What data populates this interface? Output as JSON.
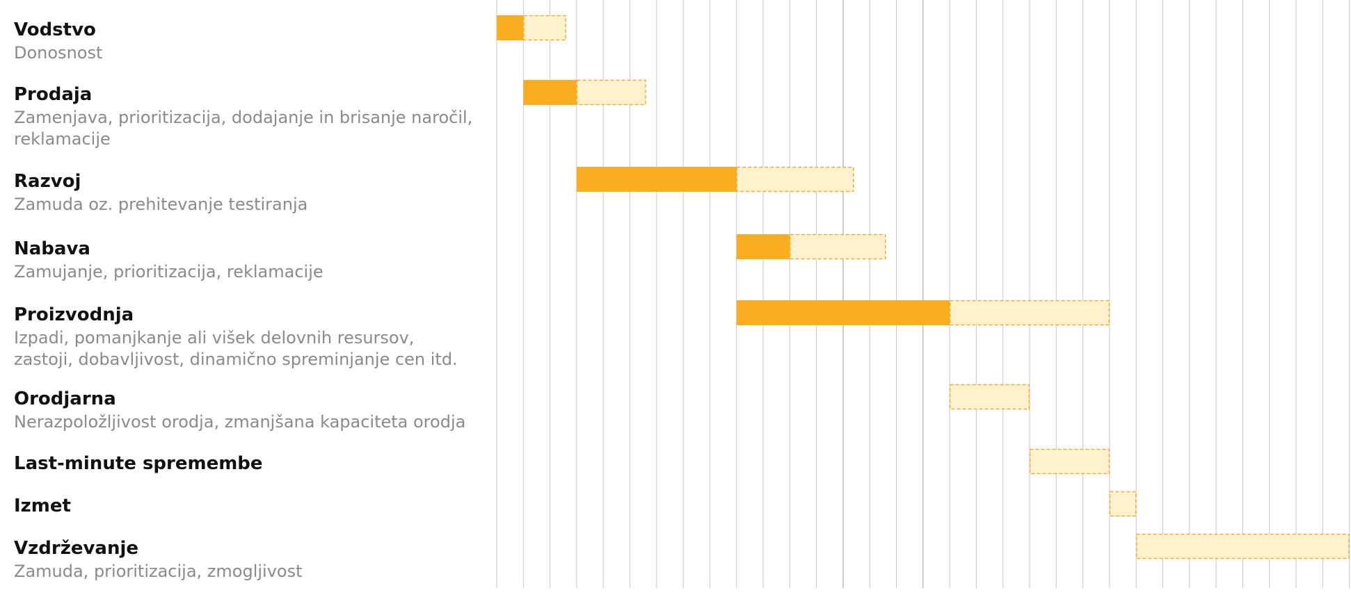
{
  "chart_data": {
    "type": "gantt",
    "title": "",
    "xlabel": "",
    "ylabel": "",
    "columns": 32,
    "grid": true,
    "colors": {
      "actual": "#F9AE22",
      "planned_fill": "#FFF2CC",
      "planned_border": "#F2A93B",
      "grid": "#c6c6c6",
      "grid_major": "#9a9a9a"
    },
    "rows": [
      {
        "title": "Vodstvo",
        "subtitle": [
          "Donosnost"
        ],
        "actual": [
          0,
          1
        ],
        "planned": [
          1,
          2.6
        ]
      },
      {
        "title": "Prodaja",
        "subtitle": [
          "Zamenjava, prioritizacija, dodajanje in brisanje naročil,",
          "reklamacije"
        ],
        "actual": [
          1,
          3
        ],
        "planned": [
          3,
          5.6
        ]
      },
      {
        "title": "Razvoj",
        "subtitle": [
          "Zamuda oz. prehitevanje testiranja"
        ],
        "actual": [
          3,
          9
        ],
        "planned": [
          9,
          13.4
        ]
      },
      {
        "title": "Nabava",
        "subtitle": [
          "Zamujanje, prioritizacija, reklamacije"
        ],
        "actual": [
          9,
          11
        ],
        "planned": [
          11,
          14.6
        ]
      },
      {
        "title": "Proizvodnja",
        "subtitle": [
          "Izpadi, pomanjkanje ali višek delovnih resursov,",
          "zastoji, dobavljivost, dinamično spreminjanje cen itd."
        ],
        "actual": [
          9,
          17
        ],
        "planned": [
          17,
          23
        ]
      },
      {
        "title": "Orodjarna",
        "subtitle": [
          "Nerazpoložljivost orodja, zmanjšana kapaciteta orodja"
        ],
        "actual": null,
        "planned": [
          17,
          20
        ]
      },
      {
        "title": "Last-minute spremembe",
        "subtitle": [],
        "actual": null,
        "planned": [
          20,
          23
        ]
      },
      {
        "title": "Izmet",
        "subtitle": [],
        "actual": null,
        "planned": [
          23,
          24
        ]
      },
      {
        "title": "Vzdrževanje",
        "subtitle": [
          "Zamuda, prioritizacija, zmogljivost"
        ],
        "actual": null,
        "planned": [
          24,
          32
        ]
      }
    ]
  }
}
